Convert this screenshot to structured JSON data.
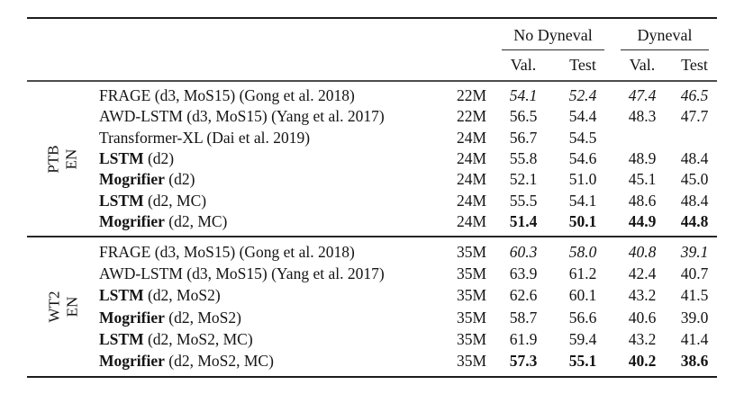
{
  "page": {
    "background": "#ffffff",
    "text_color": "#141414",
    "rule_color": "#1c1c1c"
  },
  "table": {
    "header": {
      "groups": [
        {
          "label": "No Dyneval"
        },
        {
          "label": "Dyneval"
        }
      ],
      "subcolumns": [
        "Val.",
        "Test",
        "Val.",
        "Test"
      ]
    },
    "sections": [
      {
        "row_label": {
          "line1": "PTB",
          "line2": "EN"
        },
        "rows": [
          {
            "model_bold": "",
            "model_rest": "FRAGE (d3, MoS15) (Gong et al. 2018)",
            "size": "22M",
            "values": [
              "54.1",
              "52.4",
              "47.4",
              "46.5"
            ],
            "value_style": "italic"
          },
          {
            "model_bold": "",
            "model_rest": "AWD-LSTM (d3, MoS15) (Yang et al. 2017)",
            "size": "22M",
            "values": [
              "56.5",
              "54.4",
              "48.3",
              "47.7"
            ],
            "value_style": "normal"
          },
          {
            "model_bold": "",
            "model_rest": "Transformer-XL (Dai et al. 2019)",
            "size": "24M",
            "values": [
              "56.7",
              "54.5",
              "",
              ""
            ],
            "value_style": "normal"
          },
          {
            "model_bold": "LSTM",
            "model_rest": " (d2)",
            "size": "24M",
            "values": [
              "55.8",
              "54.6",
              "48.9",
              "48.4"
            ],
            "value_style": "normal"
          },
          {
            "model_bold": "Mogrifier",
            "model_rest": " (d2)",
            "size": "24M",
            "values": [
              "52.1",
              "51.0",
              "45.1",
              "45.0"
            ],
            "value_style": "normal"
          },
          {
            "model_bold": "LSTM",
            "model_rest": " (d2, MC)",
            "size": "24M",
            "values": [
              "55.5",
              "54.1",
              "48.6",
              "48.4"
            ],
            "value_style": "normal"
          },
          {
            "model_bold": "Mogrifier",
            "model_rest": " (d2, MC)",
            "size": "24M",
            "values": [
              "51.4",
              "50.1",
              "44.9",
              "44.8"
            ],
            "value_style": "bold"
          }
        ]
      },
      {
        "row_label": {
          "line1": "WT2",
          "line2": "EN"
        },
        "rows": [
          {
            "model_bold": "",
            "model_rest": "FRAGE (d3, MoS15) (Gong et al. 2018)",
            "size": "35M",
            "values": [
              "60.3",
              "58.0",
              "40.8",
              "39.1"
            ],
            "value_style": "italic"
          },
          {
            "model_bold": "",
            "model_rest": "AWD-LSTM (d3, MoS15) (Yang et al. 2017)",
            "size": "35M",
            "values": [
              "63.9",
              "61.2",
              "42.4",
              "40.7"
            ],
            "value_style": "normal"
          },
          {
            "model_bold": "LSTM",
            "model_rest": " (d2, MoS2)",
            "size": "35M",
            "values": [
              "62.6",
              "60.1",
              "43.2",
              "41.5"
            ],
            "value_style": "normal"
          },
          {
            "model_bold": "Mogrifier",
            "model_rest": " (d2, MoS2)",
            "size": "35M",
            "values": [
              "58.7",
              "56.6",
              "40.6",
              "39.0"
            ],
            "value_style": "normal"
          },
          {
            "model_bold": "LSTM",
            "model_rest": " (d2, MoS2, MC)",
            "size": "35M",
            "values": [
              "61.9",
              "59.4",
              "43.2",
              "41.4"
            ],
            "value_style": "normal"
          },
          {
            "model_bold": "Mogrifier",
            "model_rest": " (d2, MoS2, MC)",
            "size": "35M",
            "values": [
              "57.3",
              "55.1",
              "40.2",
              "38.6"
            ],
            "value_style": "bold"
          }
        ]
      }
    ]
  }
}
